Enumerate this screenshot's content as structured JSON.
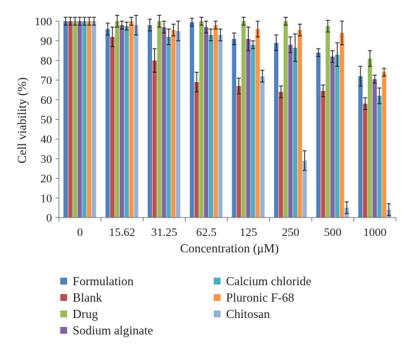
{
  "chart_data": {
    "type": "bar",
    "xlabel": "Concentration (μM)",
    "ylabel": "Cell viability (%)",
    "ylim": [
      0,
      100
    ],
    "yticks": [
      0,
      10,
      20,
      30,
      40,
      50,
      60,
      70,
      80,
      90,
      100
    ],
    "grid": false,
    "legend_position": "bottom, two columns",
    "categories": [
      "0",
      "15.62",
      "31.25",
      "62.5",
      "125",
      "250",
      "500",
      "1000"
    ],
    "series": [
      {
        "name": "Formulation",
        "color": "#4f81bd",
        "values": [
          100,
          96,
          98,
          99.5,
          91,
          89,
          84,
          72
        ],
        "errors": [
          2,
          3,
          3,
          2,
          3,
          4,
          2,
          5
        ]
      },
      {
        "name": "Blank",
        "color": "#c0504d",
        "values": [
          100,
          92,
          80,
          69,
          67,
          64,
          64.5,
          58
        ],
        "errors": [
          2,
          5,
          6,
          5,
          4,
          3,
          3,
          3
        ]
      },
      {
        "name": "Drug",
        "color": "#9bbb59",
        "values": [
          100,
          100,
          100,
          100,
          100,
          100,
          97.5,
          81
        ],
        "errors": [
          2,
          3,
          3,
          2,
          2,
          2,
          3,
          4
        ]
      },
      {
        "name": "Sodium alginate",
        "color": "#8064a2",
        "values": [
          100,
          98,
          97,
          97,
          91,
          88,
          82,
          70.5
        ],
        "errors": [
          2,
          2,
          3,
          3,
          6,
          4,
          3,
          2
        ]
      },
      {
        "name": "Calcium chloride",
        "color": "#4bacc6",
        "values": [
          100,
          97.5,
          92,
          93,
          88,
          86.5,
          83,
          62
        ],
        "errors": [
          2,
          2,
          4,
          3,
          2,
          7,
          6,
          4
        ]
      },
      {
        "name": "Pluronic F-68",
        "color": "#f79646",
        "values": [
          100,
          100,
          95.5,
          98,
          96,
          95.5,
          94,
          74
        ],
        "errors": [
          2,
          2,
          3,
          2,
          4,
          3,
          6,
          2
        ]
      },
      {
        "name": "Chitosan",
        "color": "#95b3d7",
        "values": [
          100,
          98,
          95,
          93,
          72,
          29,
          5,
          4
        ],
        "errors": [
          2,
          5,
          5,
          3,
          3,
          5,
          3,
          3
        ]
      }
    ]
  }
}
